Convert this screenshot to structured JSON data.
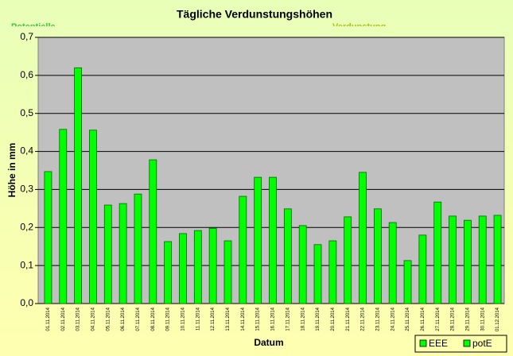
{
  "chart_data": {
    "type": "bar",
    "title": "Tägliche Verdunstungshöhen",
    "overlay_texts": [
      "Potentielle",
      "Verdunstung"
    ],
    "ylabel": "Höhe in mm",
    "xlabel": "Datum",
    "categories": [
      "01.11.2014",
      "02.11.2014",
      "03.11.2014",
      "04.11.2014",
      "05.11.2014",
      "06.11.2014",
      "07.11.2014",
      "08.11.2014",
      "09.11.2014",
      "10.11.2014",
      "11.11.2014",
      "12.11.2014",
      "13.11.2014",
      "14.11.2014",
      "15.11.2014",
      "16.11.2014",
      "17.11.2014",
      "18.11.2014",
      "19.11.2014",
      "20.11.2014",
      "21.11.2014",
      "22.11.2014",
      "23.11.2014",
      "24.11.2014",
      "25.11.2014",
      "26.11.2014",
      "27.11.2014",
      "28.11.2014",
      "29.11.2014",
      "30.11.2014",
      "01.12.2014"
    ],
    "values": [
      0.347,
      0.458,
      0.62,
      0.456,
      0.259,
      0.263,
      0.288,
      0.378,
      0.163,
      0.184,
      0.192,
      0.198,
      0.165,
      0.282,
      0.332,
      0.332,
      0.249,
      0.205,
      0.155,
      0.165,
      0.228,
      0.345,
      0.249,
      0.213,
      0.113,
      0.18,
      0.267,
      0.23,
      0.219,
      0.23,
      0.232
    ],
    "color": "#00ff00",
    "legend": [
      {
        "name": "EEE",
        "color": "#00ff00"
      },
      {
        "name": "potE",
        "color": "#00ff00"
      }
    ],
    "ylim": [
      0,
      0.7
    ],
    "yticks": [
      {
        "value": 0,
        "label": "0,0"
      },
      {
        "value": 0.1,
        "label": "0,1"
      },
      {
        "value": 0.2,
        "label": "0,2"
      },
      {
        "value": 0.3,
        "label": "0,3"
      },
      {
        "value": 0.4,
        "label": "0,4"
      },
      {
        "value": 0.5,
        "label": "0,5"
      },
      {
        "value": 0.6,
        "label": "0,6"
      },
      {
        "value": 0.7,
        "label": "0,7"
      }
    ],
    "grid": true
  }
}
